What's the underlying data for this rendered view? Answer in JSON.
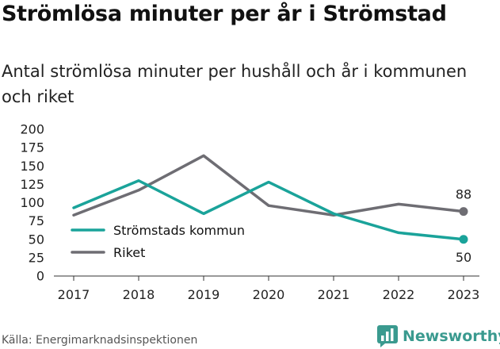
{
  "header": {
    "title": "Strömlösa minuter per år i Strömstad",
    "subtitle": "Antal strömlösa minuter per hushåll och år i kommunen och riket"
  },
  "footer": {
    "source": "Källa: Energimarknadsinspektionen",
    "brand": "Newsworthy",
    "brand_icon": "bar-chart-logo-icon",
    "brand_color": "#3a9a8f"
  },
  "chart_data": {
    "type": "line",
    "title": "Strömlösa minuter per år i Strömstad",
    "subtitle": "Antal strömlösa minuter per hushåll och år i kommunen och riket",
    "x": [
      "2017",
      "2018",
      "2019",
      "2020",
      "2021",
      "2022",
      "2023"
    ],
    "ylim": [
      0,
      200
    ],
    "yticks": [
      0,
      25,
      50,
      75,
      100,
      125,
      150,
      175,
      200
    ],
    "ytick_labels": [
      "0",
      "25",
      "50",
      "75",
      "100",
      "125",
      "150",
      "175",
      "200"
    ],
    "grid": false,
    "legend_position": "bottom-left",
    "series": [
      {
        "name": "Strömstads kommun",
        "color": "#1aa39a",
        "values": [
          93,
          130,
          85,
          128,
          85,
          59,
          50
        ],
        "end_label": "50"
      },
      {
        "name": "Riket",
        "color": "#6e6d73",
        "values": [
          83,
          117,
          164,
          96,
          83,
          98,
          88
        ],
        "end_label": "88"
      }
    ]
  }
}
